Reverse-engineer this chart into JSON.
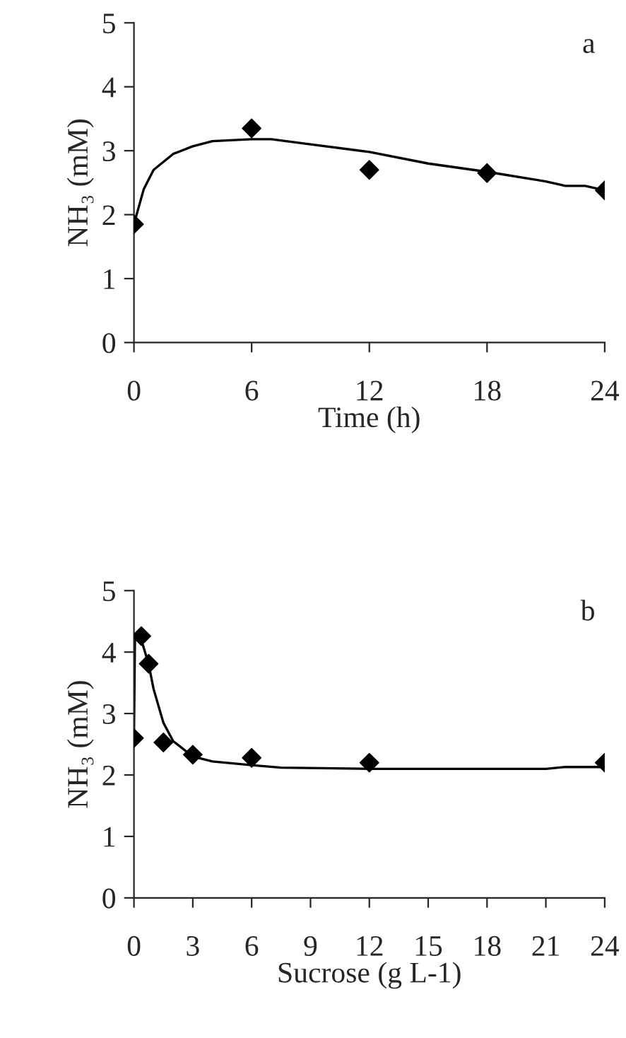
{
  "chart_data": [
    {
      "type": "scatter",
      "xlabel": "Time (h)",
      "ylabel": "NH₃ (mM)",
      "annotations": [
        "a"
      ],
      "series": [
        {
          "type": "scatter",
          "color": "#000000",
          "marker": "diamond",
          "x": [
            0,
            6,
            12,
            18,
            24
          ],
          "values": [
            1.85,
            3.35,
            2.7,
            2.65,
            2.38
          ]
        },
        {
          "type": "line",
          "color": "#000000",
          "marker": "none",
          "line_style": "solid",
          "x": [
            0,
            0.5,
            1,
            2,
            3,
            4,
            6,
            7,
            9,
            12,
            15,
            18,
            21,
            22,
            23,
            24
          ],
          "values": [
            1.85,
            2.4,
            2.7,
            2.95,
            3.07,
            3.15,
            3.18,
            3.18,
            3.1,
            2.98,
            2.8,
            2.67,
            2.52,
            2.45,
            2.45,
            2.38
          ]
        }
      ],
      "xlim": [
        0,
        24
      ],
      "xticks": [
        0,
        6,
        12,
        18,
        24
      ],
      "ylim": [
        0,
        5
      ],
      "yticks": [
        0,
        1,
        2,
        3,
        4,
        5
      ],
      "grid": false,
      "legend": false
    },
    {
      "type": "scatter",
      "xlabel": "Sucrose (g L-1)",
      "ylabel": "NH₃ (mM)",
      "annotations": [
        "b"
      ],
      "series": [
        {
          "type": "scatter",
          "color": "#000000",
          "marker": "diamond",
          "x": [
            0,
            0.375,
            0.75,
            1.5,
            3,
            6,
            12,
            24
          ],
          "values": [
            2.6,
            4.26,
            3.81,
            2.53,
            2.33,
            2.28,
            2.2,
            2.2
          ]
        },
        {
          "type": "line",
          "color": "#000000",
          "marker": "none",
          "line_style": "solid",
          "x": [
            0,
            0.05,
            0.375,
            0.75,
            1,
            1.5,
            2,
            3,
            4,
            6,
            7.5,
            12,
            18,
            21,
            22,
            24
          ],
          "values": [
            2.6,
            4.25,
            4.2,
            3.8,
            3.4,
            2.85,
            2.55,
            2.3,
            2.22,
            2.16,
            2.12,
            2.1,
            2.1,
            2.1,
            2.13,
            2.13
          ]
        }
      ],
      "xlim": [
        0,
        24
      ],
      "xticks": [
        0,
        3,
        6,
        9,
        12,
        15,
        18,
        21,
        24
      ],
      "ylim": [
        0,
        5
      ],
      "yticks": [
        0,
        1,
        2,
        3,
        4,
        5
      ],
      "grid": false,
      "legend": false
    }
  ]
}
